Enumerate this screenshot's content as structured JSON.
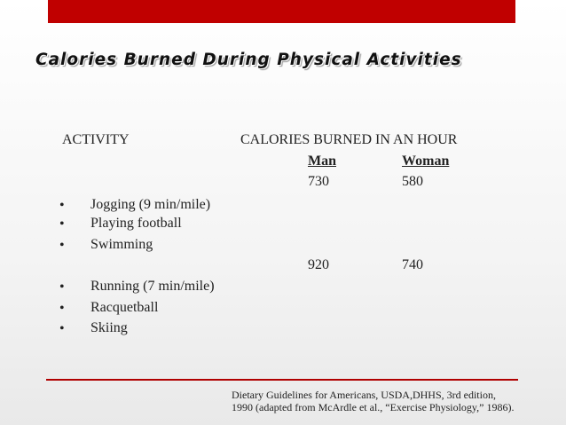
{
  "slide": {
    "title": "Calories Burned During Physical Activities",
    "accent_color": "#c00000",
    "bullet_glyph": "•"
  },
  "table": {
    "activity_header": "ACTIVITY",
    "calories_header": "CALORIES BURNED IN AN HOUR",
    "col_man": "Man",
    "col_woman": "Woman",
    "groups": [
      {
        "man": "730",
        "woman": "580",
        "activities": [
          "Jogging (9 min/mile)",
          "Playing football",
          "Swimming"
        ]
      },
      {
        "man": "920",
        "woman": "740",
        "activities": [
          "Running (7 min/mile)",
          "Racquetball",
          "Skiing"
        ]
      }
    ]
  },
  "citation": {
    "line1": "Dietary Guidelines for Americans, USDA,DHHS, 3rd edition,",
    "line2": "1990 (adapted from McArdle et al., “Exercise Physiology,” 1986)."
  }
}
